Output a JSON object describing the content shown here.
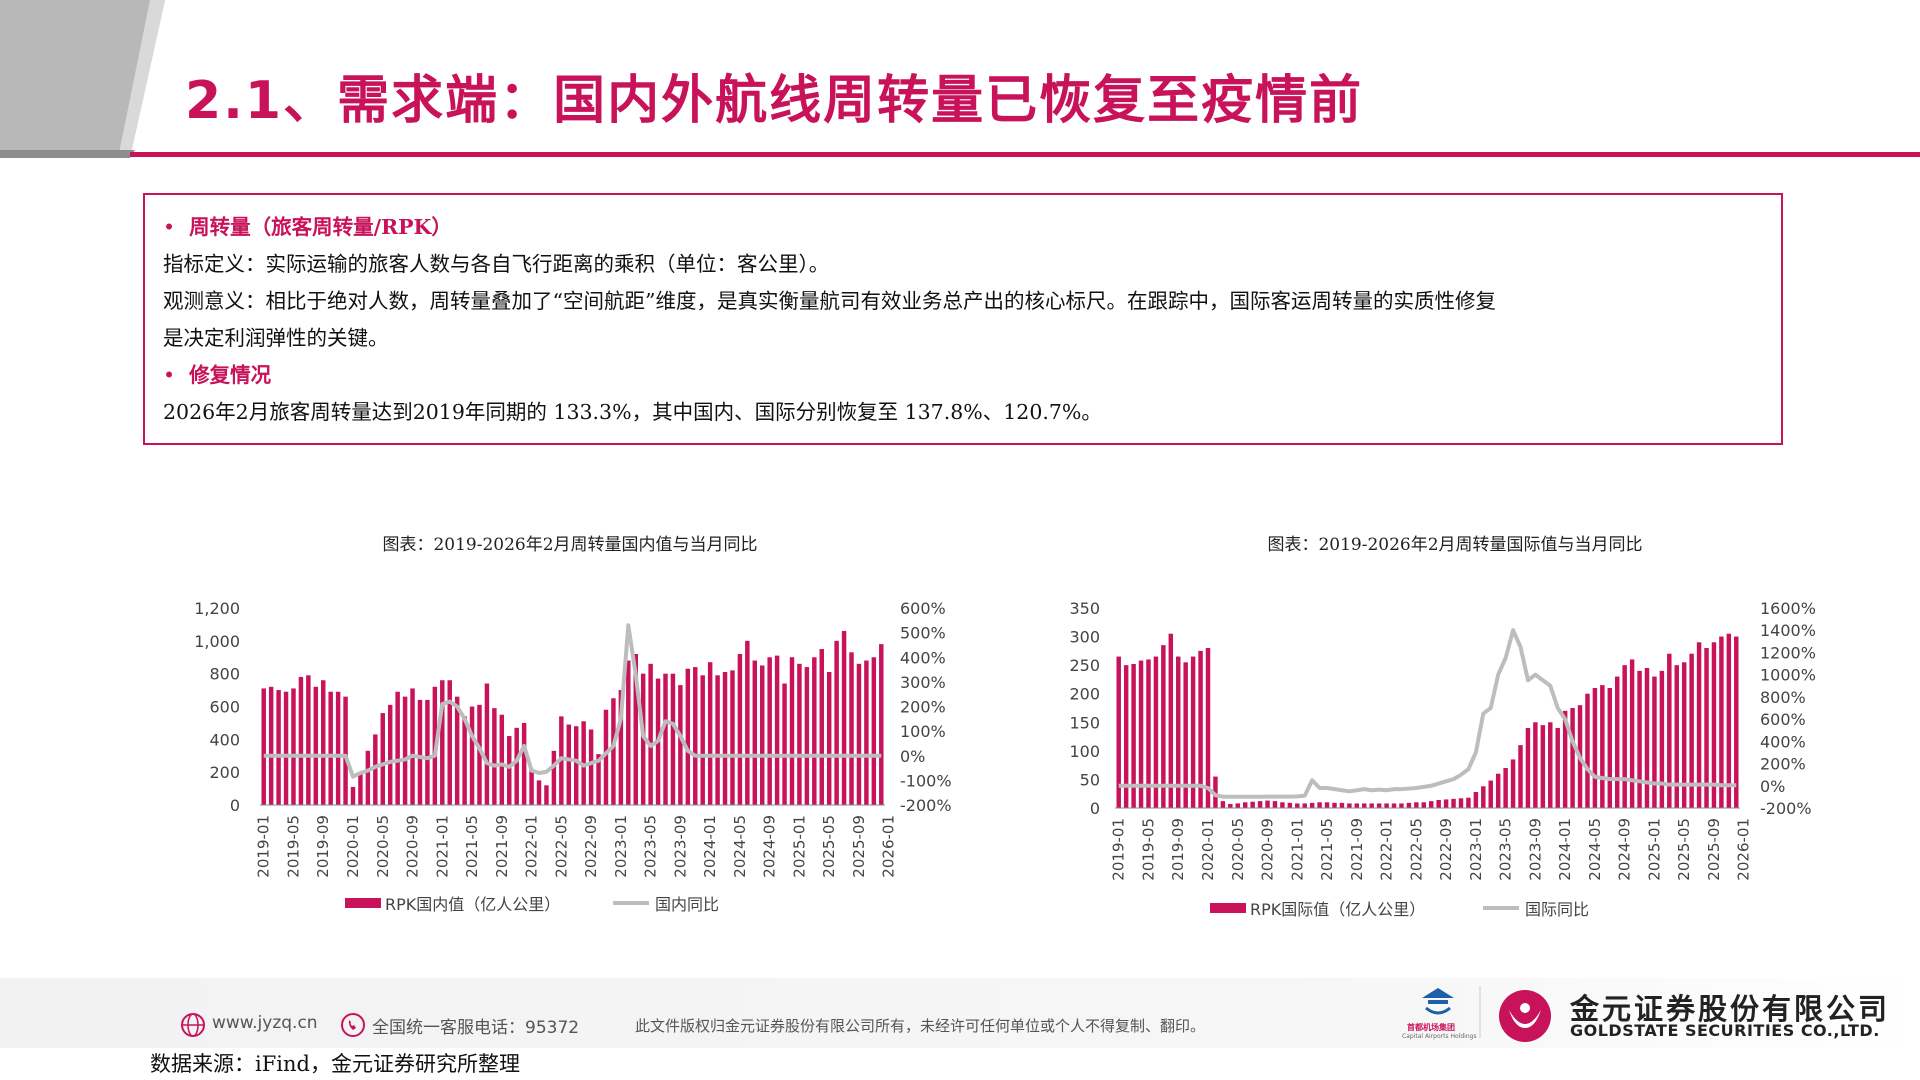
{
  "page": {
    "title": "2.1、需求端：国内外航线周转量已恢复至疫情前"
  },
  "info": {
    "section1_heading": "周转量（旅客周转量/RPK）",
    "definition": "指标定义：实际运输的旅客人数与各自飞行距离的乘积（单位：客公里）。",
    "meaning_line1": "观测意义：相比于绝对人数，周转量叠加了“空间航距”维度，是真实衡量航司有效业务总产出的核心标尺。在跟踪中，国际客运周转量的实质性修复",
    "meaning_line2": "是决定利润弹性的关键。",
    "section2_heading": "修复情况",
    "recovery": "2026年2月旅客周转量达到2019年同期的 133.3%，其中国内、国际分别恢复至 137.8%、120.7%。",
    "bullet": "•"
  },
  "footer": {
    "website": "www.jyzq.cn",
    "hotline": "全国统一客服电话：95372",
    "copyright": "此文件版权归金元证券股份有限公司所有，未经许可任何单位或个人不得复制、翻印。",
    "company_cn": "金元证券股份有限公司",
    "company_en": "GOLDSTATE SECURITIES CO.,LTD.",
    "capital_cn": "首都机场集团",
    "capital_en": "Capital Airports Holdings",
    "source": "数据来源：iFind，金元证券研究所整理"
  },
  "colors": {
    "accent": "#c8125a",
    "line": "#bdbdbd"
  },
  "chart_data": [
    {
      "type": "bar+line",
      "title": "图表：2019-2026年2月周转量国内值与当月同比",
      "x_labels": [
        "2019-01",
        "2019-05",
        "2019-09",
        "2020-01",
        "2020-05",
        "2020-09",
        "2021-01",
        "2021-05",
        "2021-09",
        "2022-01",
        "2022-05",
        "2022-09",
        "2023-01",
        "2023-05",
        "2023-09",
        "2024-01",
        "2024-05",
        "2024-09",
        "2025-01",
        "2025-05",
        "2025-09",
        "2026-01"
      ],
      "y_left_ticks": [
        "1,200",
        "1,000",
        "800",
        "600",
        "400",
        "200",
        "0"
      ],
      "y_left_range": [
        0,
        1200
      ],
      "y_right_ticks": [
        "600%",
        "500%",
        "400%",
        "300%",
        "200%",
        "100%",
        "0%",
        "-100%",
        "-200%"
      ],
      "y_right_range": [
        -200,
        600
      ],
      "series": [
        {
          "name": "RPK国内值（亿人公里）",
          "kind": "bar",
          "values": [
            710,
            720,
            700,
            690,
            710,
            780,
            790,
            720,
            760,
            690,
            690,
            660,
            110,
            190,
            330,
            430,
            560,
            610,
            690,
            660,
            710,
            640,
            640,
            720,
            760,
            760,
            660,
            540,
            600,
            610,
            740,
            590,
            550,
            420,
            470,
            500,
            220,
            150,
            120,
            330,
            540,
            490,
            480,
            510,
            460,
            310,
            580,
            650,
            700,
            880,
            920,
            800,
            860,
            770,
            800,
            800,
            730,
            830,
            840,
            790,
            870,
            790,
            810,
            820,
            920,
            1000,
            880,
            850,
            900,
            910,
            740,
            900,
            860,
            840,
            900,
            950,
            810,
            1000,
            1060,
            930,
            860,
            880,
            900,
            980
          ]
        },
        {
          "name": "国内同比",
          "kind": "line",
          "values": [
            0,
            0,
            0,
            0,
            0,
            0,
            0,
            0,
            0,
            0,
            0,
            0,
            -85,
            -70,
            -60,
            -45,
            -35,
            -25,
            -20,
            -15,
            0,
            -5,
            -10,
            0,
            210,
            220,
            200,
            150,
            80,
            30,
            -30,
            -40,
            -35,
            -45,
            -20,
            40,
            -60,
            -70,
            -65,
            -40,
            -10,
            -15,
            -20,
            -40,
            -30,
            -20,
            10,
            40,
            150,
            530,
            330,
            80,
            40,
            60,
            140,
            130,
            80,
            20,
            0,
            0,
            0,
            0,
            0,
            0,
            0,
            0,
            0,
            0,
            0,
            0,
            0,
            0,
            0,
            0,
            0,
            0,
            0,
            0,
            0,
            0,
            0,
            0,
            0,
            0
          ]
        }
      ]
    },
    {
      "type": "bar+line",
      "title": "图表：2019-2026年2月周转量国际值与当月同比",
      "x_labels": [
        "2019-01",
        "2019-05",
        "2019-09",
        "2020-01",
        "2020-05",
        "2020-09",
        "2021-01",
        "2021-05",
        "2021-09",
        "2022-01",
        "2022-05",
        "2022-09",
        "2023-01",
        "2023-05",
        "2023-09",
        "2024-01",
        "2024-05",
        "2024-09",
        "2025-01",
        "2025-05",
        "2025-09",
        "2026-01"
      ],
      "y_left_ticks": [
        "350",
        "300",
        "250",
        "200",
        "150",
        "100",
        "50",
        "0"
      ],
      "y_left_range": [
        0,
        350
      ],
      "y_right_ticks": [
        "1600%",
        "1400%",
        "1200%",
        "1000%",
        "800%",
        "600%",
        "400%",
        "200%",
        "0%",
        "-200%"
      ],
      "y_right_range": [
        -200,
        1600
      ],
      "series": [
        {
          "name": "RPK国际值（亿人公里）",
          "kind": "bar",
          "values": [
            265,
            250,
            252,
            258,
            260,
            265,
            285,
            305,
            265,
            255,
            265,
            275,
            280,
            55,
            12,
            7,
            8,
            10,
            11,
            12,
            13,
            12,
            10,
            9,
            8,
            8,
            9,
            10,
            10,
            9,
            9,
            8,
            8,
            8,
            8,
            8,
            8,
            8,
            8,
            9,
            10,
            10,
            12,
            14,
            15,
            16,
            17,
            18,
            28,
            38,
            48,
            60,
            70,
            85,
            110,
            140,
            150,
            145,
            150,
            140,
            170,
            175,
            180,
            200,
            210,
            215,
            210,
            230,
            250,
            260,
            240,
            245,
            230,
            240,
            270,
            250,
            255,
            270,
            290,
            280,
            290,
            300,
            305,
            300
          ]
        },
        {
          "name": "国际同比",
          "kind": "line",
          "values": [
            0,
            0,
            0,
            0,
            0,
            0,
            0,
            0,
            0,
            0,
            0,
            0,
            -20,
            -85,
            -98,
            -99,
            -99,
            -99,
            -99,
            -99,
            -98,
            -98,
            -98,
            -98,
            -95,
            -90,
            50,
            -20,
            -20,
            -30,
            -40,
            -50,
            -40,
            -30,
            -40,
            -35,
            -40,
            -30,
            -30,
            -25,
            -20,
            -10,
            0,
            20,
            40,
            60,
            100,
            150,
            300,
            650,
            700,
            1000,
            1150,
            1400,
            1250,
            950,
            1000,
            950,
            900,
            700,
            600,
            400,
            250,
            150,
            80,
            70,
            60,
            60,
            60,
            50,
            40,
            30,
            20,
            20,
            10,
            10,
            10,
            10,
            10,
            10,
            10,
            5,
            5,
            5
          ]
        }
      ]
    }
  ]
}
